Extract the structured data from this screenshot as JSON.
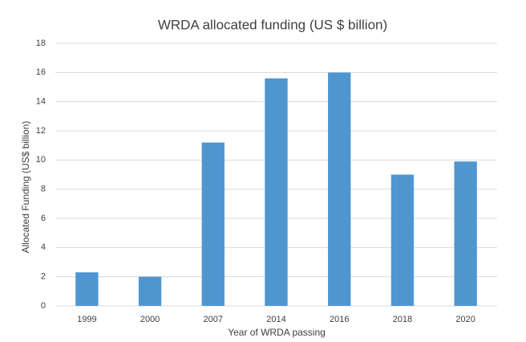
{
  "chart_data": {
    "type": "bar",
    "title": "WRDA allocated funding (US $ billion)",
    "x_label": "Year of WRDA passing",
    "y_label": "Allocated Funding (US$ billion)",
    "categories": [
      "1999",
      "2000",
      "2007",
      "2014",
      "2016",
      "2018",
      "2020"
    ],
    "values": [
      2.3,
      2.0,
      11.2,
      15.6,
      16.0,
      9.0,
      9.9
    ],
    "color": "#4f96d1",
    "ylim": [
      0,
      18
    ],
    "yticks": [
      0,
      2,
      4,
      6,
      8,
      10,
      12,
      14,
      16,
      18
    ],
    "grid": true
  }
}
